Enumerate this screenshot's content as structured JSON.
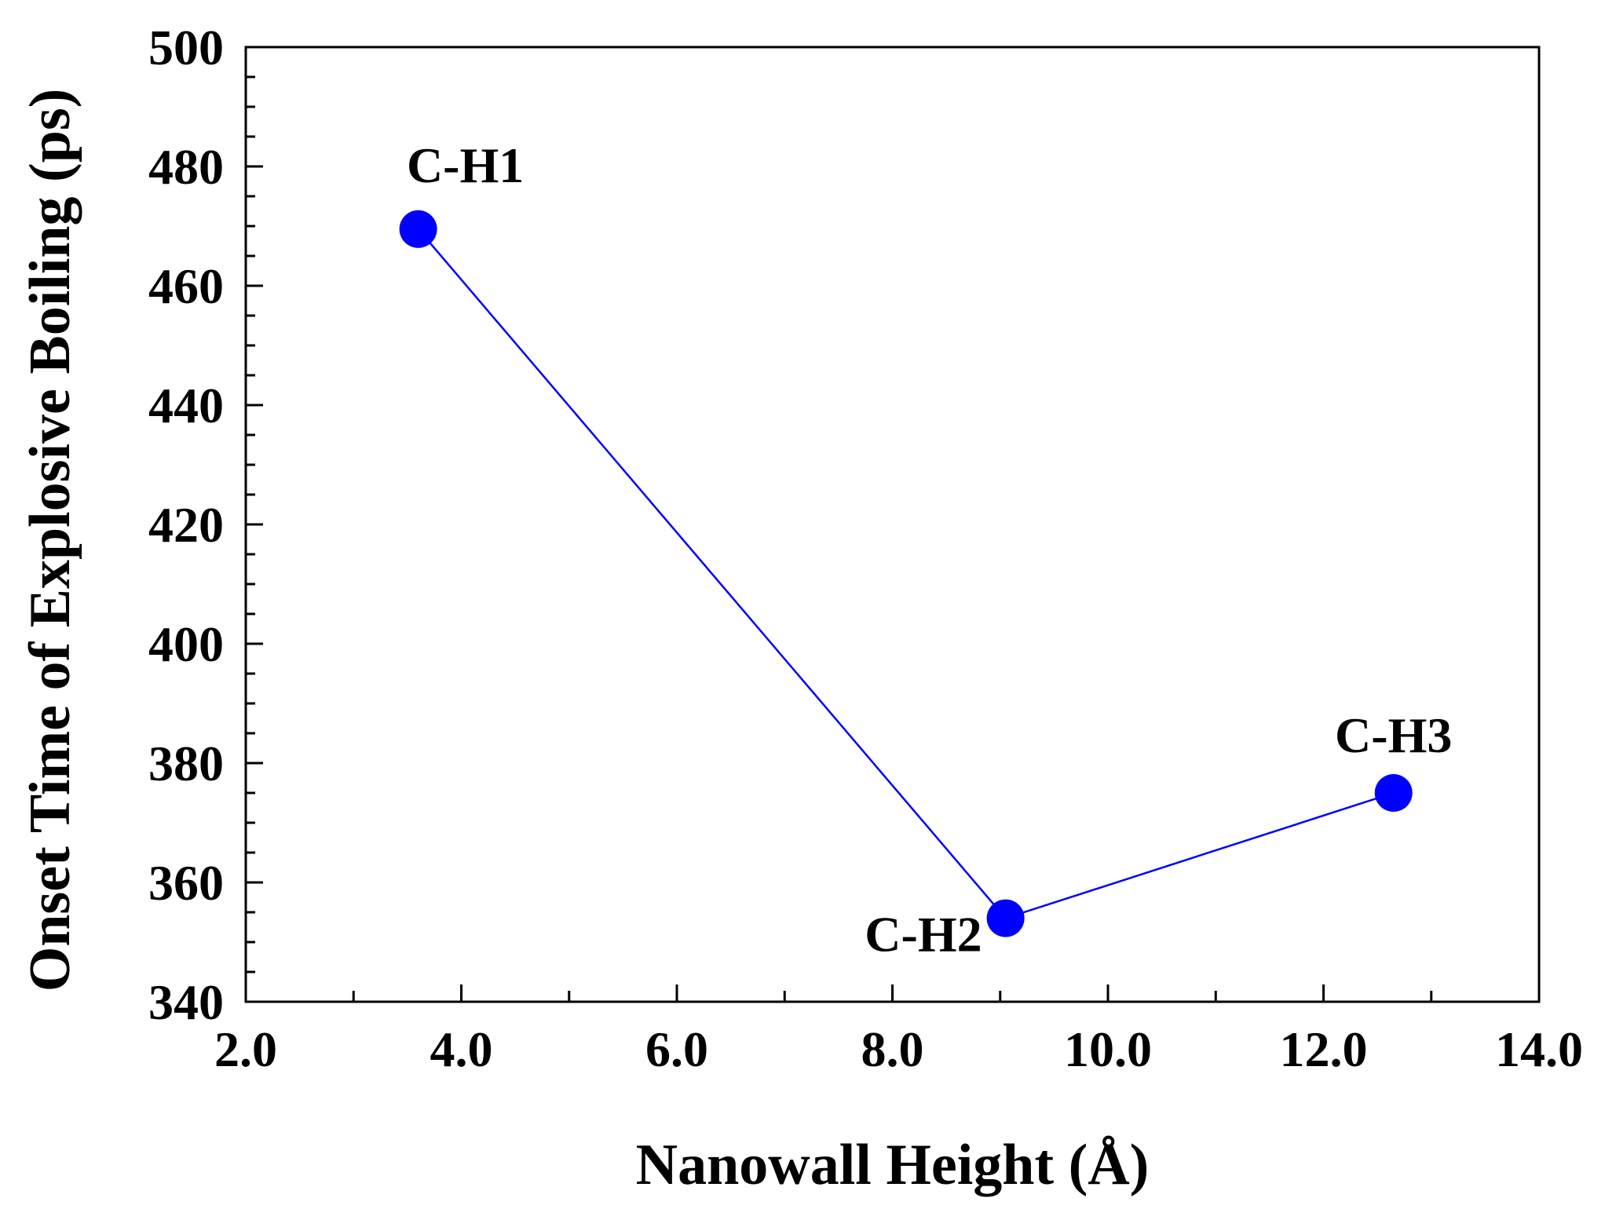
{
  "chart_data": {
    "type": "line",
    "title": "",
    "xlabel": "Nanowall Height (Å)",
    "ylabel": "Onset Time of Explosive Boiling (ps)",
    "xlim": [
      2.0,
      14.0
    ],
    "ylim": [
      340,
      500
    ],
    "x_ticks": [
      "2.0",
      "4.0",
      "6.0",
      "8.0",
      "10.0",
      "12.0",
      "14.0"
    ],
    "y_ticks": [
      "340",
      "360",
      "380",
      "400",
      "420",
      "440",
      "460",
      "480",
      "500"
    ],
    "grid": false,
    "legend": "none",
    "series": [
      {
        "name": "Onset time",
        "color": "#0000ff",
        "points": [
          {
            "label": "C-H1",
            "x": 3.6,
            "y": 469.5
          },
          {
            "label": "C-H2",
            "x": 9.05,
            "y": 354
          },
          {
            "label": "C-H3",
            "x": 12.65,
            "y": 375
          }
        ]
      }
    ]
  }
}
